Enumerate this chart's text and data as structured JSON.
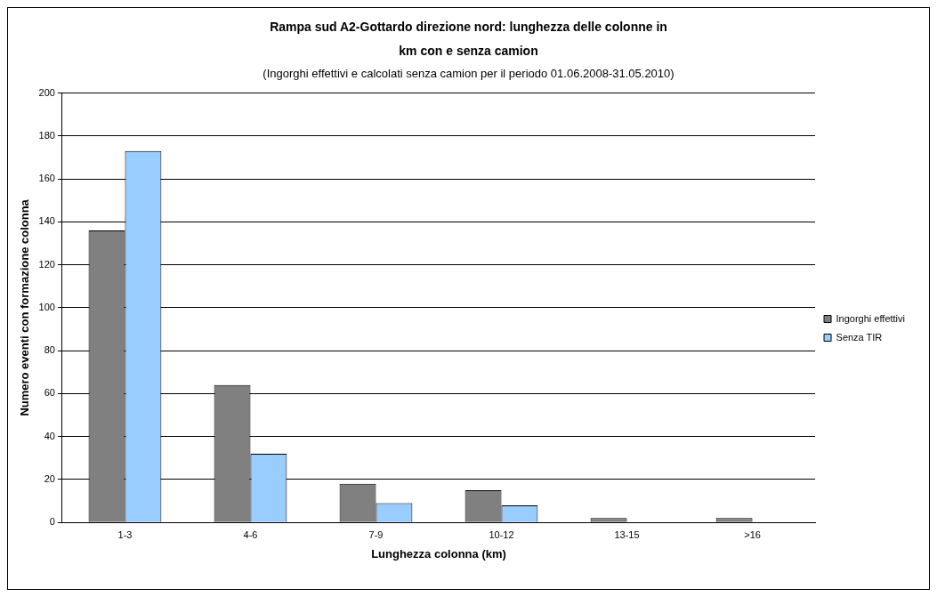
{
  "chart_data": {
    "type": "bar",
    "title": "Rampa sud A2-Gottardo direzione nord: lunghezza delle colonne in km con e senza camion",
    "subtitle": "(Ingorghi effettivi e calcolati senza camion per il periodo 01.06.2008-31.05.2010)",
    "xlabel": "Lunghezza colonna (km)",
    "ylabel": "Numero eventi con formazione colonna",
    "categories": [
      "1-3",
      "4-6",
      "7-9",
      "10-12",
      "13-15",
      ">16"
    ],
    "series": [
      {
        "name": "Ingorghi effettivi",
        "color": "#808080",
        "values": [
          136,
          64,
          18,
          15,
          2,
          2
        ]
      },
      {
        "name": "Senza TIR",
        "color": "#99ccff",
        "values": [
          173,
          32,
          9,
          8,
          0,
          0
        ]
      }
    ],
    "ylim": [
      0,
      200
    ],
    "yticks": [
      0,
      20,
      40,
      60,
      80,
      100,
      120,
      140,
      160,
      180,
      200
    ],
    "grid": "y",
    "legend": "right"
  }
}
